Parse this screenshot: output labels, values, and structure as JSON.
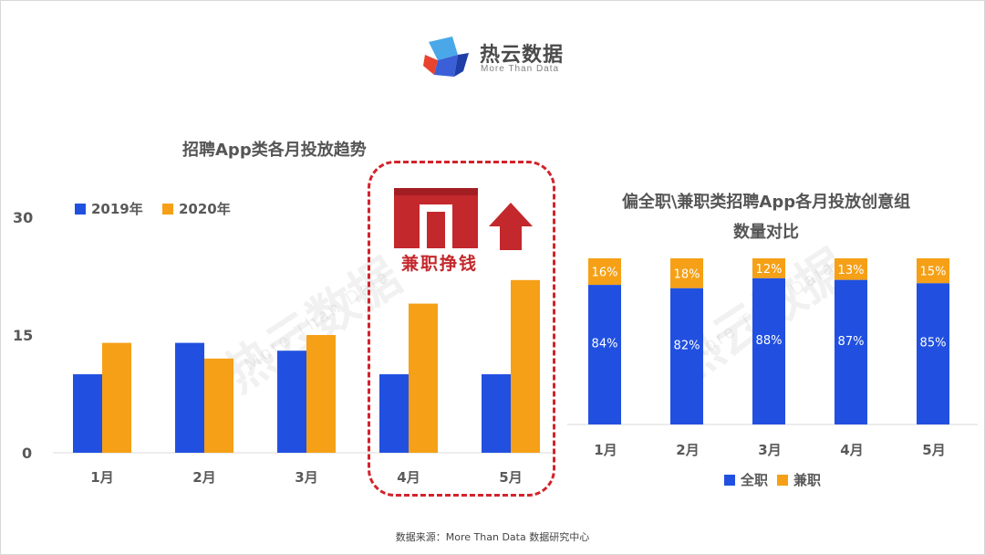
{
  "brand": {
    "name": "热云数据",
    "tagline": "More Than Data"
  },
  "left_chart_title": "招聘App类各月投放趋势",
  "right_chart_title_line1": "偏全职\\兼职类招聘App各月投放创意组",
  "right_chart_title_line2": "数量对比",
  "highlight_label": "兼职挣钱",
  "source": "数据来源：More Than Data 数据研究中心",
  "colors": {
    "blue": "#2150e0",
    "orange": "#f5a016",
    "red": "#d3232b"
  },
  "chart_data": [
    {
      "type": "bar",
      "title": "招聘App类各月投放趋势",
      "categories": [
        "1月",
        "2月",
        "3月",
        "4月",
        "5月"
      ],
      "series": [
        {
          "name": "2019年",
          "values": [
            10,
            14,
            13,
            10,
            10
          ]
        },
        {
          "name": "2020年",
          "values": [
            14,
            12,
            15,
            19,
            22
          ]
        }
      ],
      "yticks": [
        "0",
        "15",
        "30"
      ],
      "ylim": [
        0,
        30
      ],
      "legend": "top-left",
      "grid": false
    },
    {
      "type": "bar",
      "stacked": true,
      "title": "偏全职\\兼职类招聘App各月投放创意组 数量对比",
      "categories": [
        "1月",
        "2月",
        "3月",
        "4月",
        "5月"
      ],
      "series": [
        {
          "name": "全职",
          "values": [
            84,
            82,
            88,
            87,
            85
          ],
          "labels": [
            "84%",
            "82%",
            "88%",
            "87%",
            "85%"
          ]
        },
        {
          "name": "兼职",
          "values": [
            16,
            18,
            12,
            13,
            15
          ],
          "labels": [
            "16%",
            "18%",
            "12%",
            "13%",
            "15%"
          ]
        }
      ],
      "ylim": [
        0,
        100
      ],
      "legend": "bottom",
      "grid": false
    }
  ]
}
